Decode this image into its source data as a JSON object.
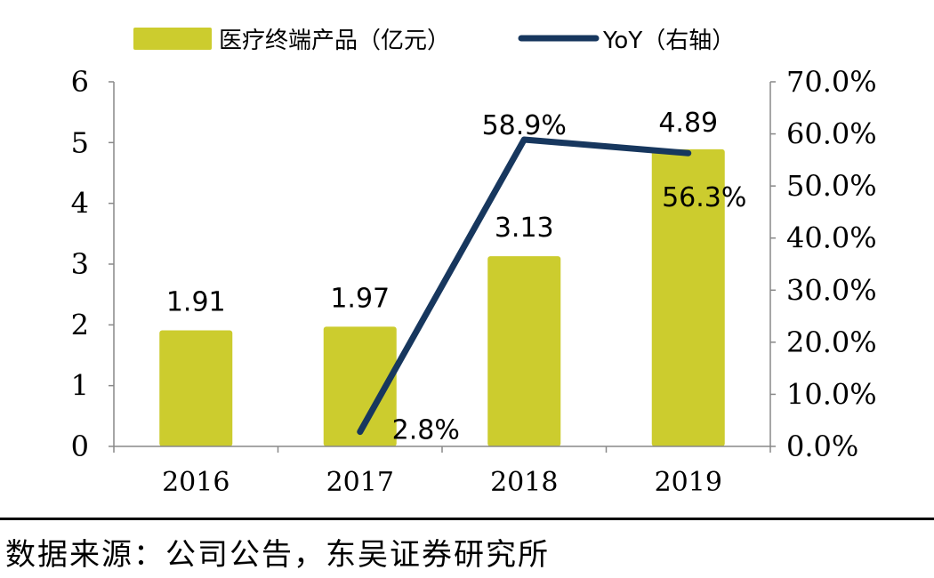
{
  "chart_data": {
    "type": "bar+line",
    "categories": [
      "2016",
      "2017",
      "2018",
      "2019"
    ],
    "bar_series": {
      "name": "医疗终端产品（亿元）",
      "values": [
        1.91,
        1.97,
        3.13,
        4.89
      ],
      "labels": [
        "1.91",
        "1.97",
        "3.13",
        "4.89"
      ],
      "color": "#cccc2e"
    },
    "line_series": {
      "name": "YoY（右轴）",
      "x": [
        "2017",
        "2018",
        "2019"
      ],
      "values": [
        2.8,
        58.9,
        56.3
      ],
      "labels": [
        "2.8%",
        "58.9%",
        "56.3%"
      ],
      "color": "#17375e"
    },
    "left_axis": {
      "ylim": [
        0,
        6
      ],
      "ticks": [
        "0",
        "1",
        "2",
        "3",
        "4",
        "5",
        "6"
      ]
    },
    "right_axis": {
      "ylim": [
        0,
        70
      ],
      "ticks": [
        "0.0%",
        "10.0%",
        "20.0%",
        "30.0%",
        "40.0%",
        "50.0%",
        "60.0%",
        "70.0%"
      ]
    },
    "legend_position": "top-center",
    "grid": false
  },
  "source": "数据来源：公司公告，东吴证券研究所"
}
